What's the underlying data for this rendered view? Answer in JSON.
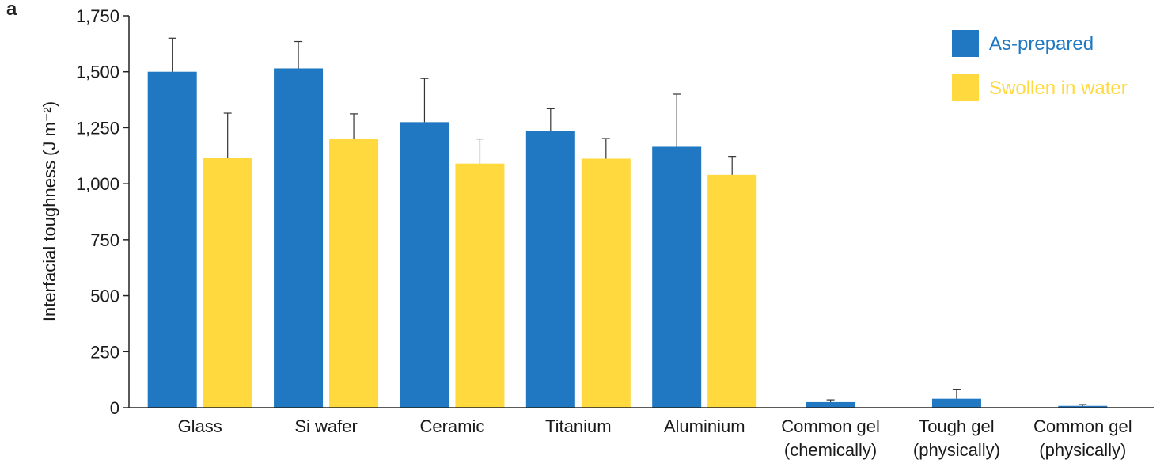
{
  "panel_label": "a",
  "colors": {
    "as_prepared": "#1f78c1",
    "swollen": "#ffd93e",
    "axis": "#222222"
  },
  "chart_data": {
    "type": "bar",
    "title": "",
    "xlabel": "",
    "ylabel": "Interfacial toughness  (J m⁻²)",
    "ylim": [
      0,
      1750
    ],
    "yticks": [
      0,
      250,
      500,
      750,
      1000,
      1250,
      1500,
      1750
    ],
    "ytick_labels": [
      "0",
      "250",
      "500",
      "750",
      "1,000",
      "1,250",
      "1,500",
      "1,750"
    ],
    "categories": [
      [
        "Glass"
      ],
      [
        "Si wafer"
      ],
      [
        "Ceramic"
      ],
      [
        "Titanium"
      ],
      [
        "Aluminium"
      ],
      [
        "Common gel",
        "(chemically)"
      ],
      [
        "Tough gel",
        "(physically)"
      ],
      [
        "Common gel",
        "(physically)"
      ]
    ],
    "series": [
      {
        "name": "As-prepared",
        "values": [
          1500,
          1515,
          1275,
          1235,
          1165,
          25,
          40,
          8
        ],
        "errors": [
          150,
          120,
          195,
          100,
          235,
          10,
          40,
          6
        ]
      },
      {
        "name": "Swollen in water",
        "values": [
          1115,
          1200,
          1090,
          1112,
          1040,
          null,
          null,
          null
        ],
        "errors": [
          200,
          112,
          110,
          90,
          82,
          null,
          null,
          null
        ]
      }
    ],
    "legend_position": "top-right"
  }
}
